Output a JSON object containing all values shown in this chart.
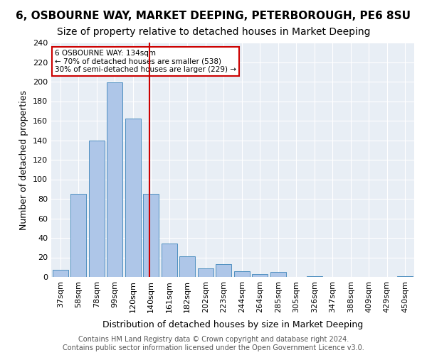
{
  "title": "6, OSBOURNE WAY, MARKET DEEPING, PETERBOROUGH, PE6 8SU",
  "subtitle": "Size of property relative to detached houses in Market Deeping",
  "xlabel": "Distribution of detached houses by size in Market Deeping",
  "ylabel": "Number of detached properties",
  "categories": [
    "37sqm",
    "58sqm",
    "78sqm",
    "99sqm",
    "120sqm",
    "140sqm",
    "161sqm",
    "182sqm",
    "202sqm",
    "223sqm",
    "244sqm",
    "264sqm",
    "285sqm",
    "305sqm",
    "326sqm",
    "347sqm",
    "388sqm",
    "409sqm",
    "429sqm",
    "450sqm"
  ],
  "values": [
    7,
    85,
    140,
    199,
    162,
    85,
    34,
    21,
    9,
    13,
    6,
    3,
    5,
    0,
    1,
    0,
    0,
    0,
    0,
    1
  ],
  "bar_color": "#aec6e8",
  "bar_edge_color": "#4f8fc0",
  "vline_color": "#cc0000",
  "annotation_title": "6 OSBOURNE WAY: 134sqm",
  "annotation_line1": "← 70% of detached houses are smaller (538)",
  "annotation_line2": "30% of semi-detached houses are larger (229) →",
  "annotation_box_color": "#ffffff",
  "annotation_box_edge": "#cc0000",
  "ylim": [
    0,
    240
  ],
  "yticks": [
    0,
    20,
    40,
    60,
    80,
    100,
    120,
    140,
    160,
    180,
    200,
    220,
    240
  ],
  "background_color": "#e8eef5",
  "footer": "Contains HM Land Registry data © Crown copyright and database right 2024.\nContains public sector information licensed under the Open Government Licence v3.0.",
  "title_fontsize": 11,
  "subtitle_fontsize": 10,
  "xlabel_fontsize": 9,
  "ylabel_fontsize": 9,
  "tick_fontsize": 8,
  "footer_fontsize": 7
}
